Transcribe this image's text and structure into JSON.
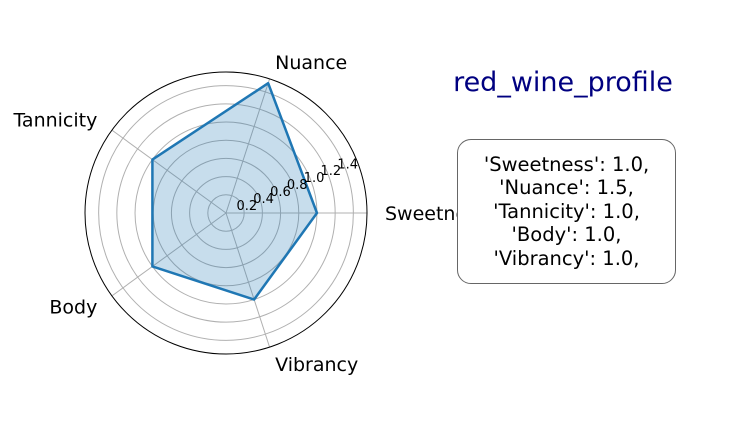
{
  "chart_data": {
    "type": "radar",
    "title": "red_wine_profile",
    "title_color": "#000080",
    "categories": [
      "Sweetness",
      "Nuance",
      "Tannicity",
      "Body",
      "Vibrancy"
    ],
    "values": [
      1.0,
      1.5,
      1.0,
      1.0,
      1.0
    ],
    "rmax": 1.55,
    "radial_ticks": [
      "0.2",
      "0.4",
      "0.6",
      "0.8",
      "1.0",
      "1.2",
      "1.4"
    ],
    "radial_tick_values": [
      0.2,
      0.4,
      0.6,
      0.8,
      1.0,
      1.2,
      1.4
    ],
    "grid": true,
    "line_color": "#1f77b4",
    "fill_color": "#1f77b4",
    "annotation_lines": [
      "'Sweetness': 1.0,",
      "'Nuance': 1.5,",
      "'Tannicity': 1.0,",
      "'Body': 1.0,",
      "'Vibrancy': 1.0,"
    ]
  }
}
